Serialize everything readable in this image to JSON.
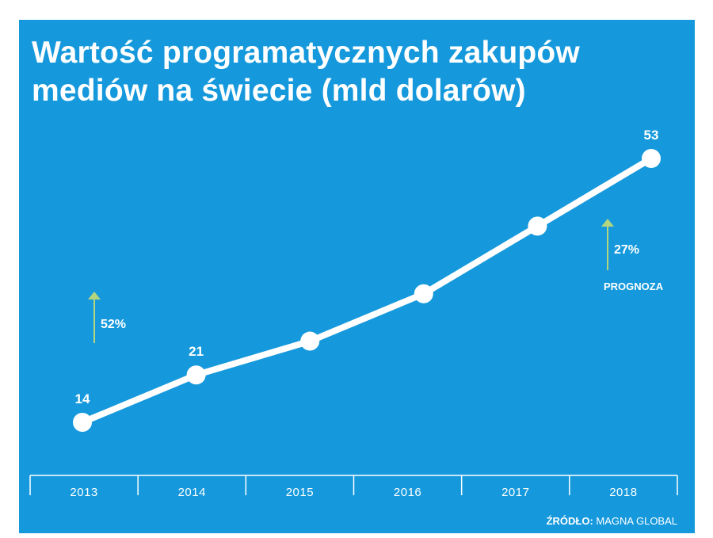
{
  "colors": {
    "background": "#1599dc",
    "line": "#ffffff",
    "arrow": "#b3d57e",
    "text": "#ffffff"
  },
  "title": "Wartość programatycznych zakupów mediów na świecie (mld dolarów)",
  "source": {
    "label": "ŹRÓDŁO:",
    "value": "MAGNA GLOBAL"
  },
  "chart_data": {
    "type": "line",
    "title": "Wartość programatycznych zakupów mediów na świecie (mld dolarów)",
    "xlabel": "",
    "ylabel": "",
    "unit": "mld dolarów",
    "categories": [
      "2013",
      "2014",
      "2015",
      "2016",
      "2017",
      "2018"
    ],
    "series": [
      {
        "values": [
          14,
          21,
          26,
          33,
          43,
          53
        ]
      }
    ],
    "data_labels": {
      "2013": "14",
      "2014": "21",
      "2018": "53"
    },
    "ylim": [
      0,
      60
    ],
    "grid": false,
    "legend": "none",
    "annotations": [
      {
        "text": "52%",
        "arrow": "up",
        "near": "2013"
      },
      {
        "text": "27%",
        "arrow": "up",
        "near": "2018"
      },
      {
        "text": "PROGNOZA",
        "near": "2018"
      }
    ]
  }
}
